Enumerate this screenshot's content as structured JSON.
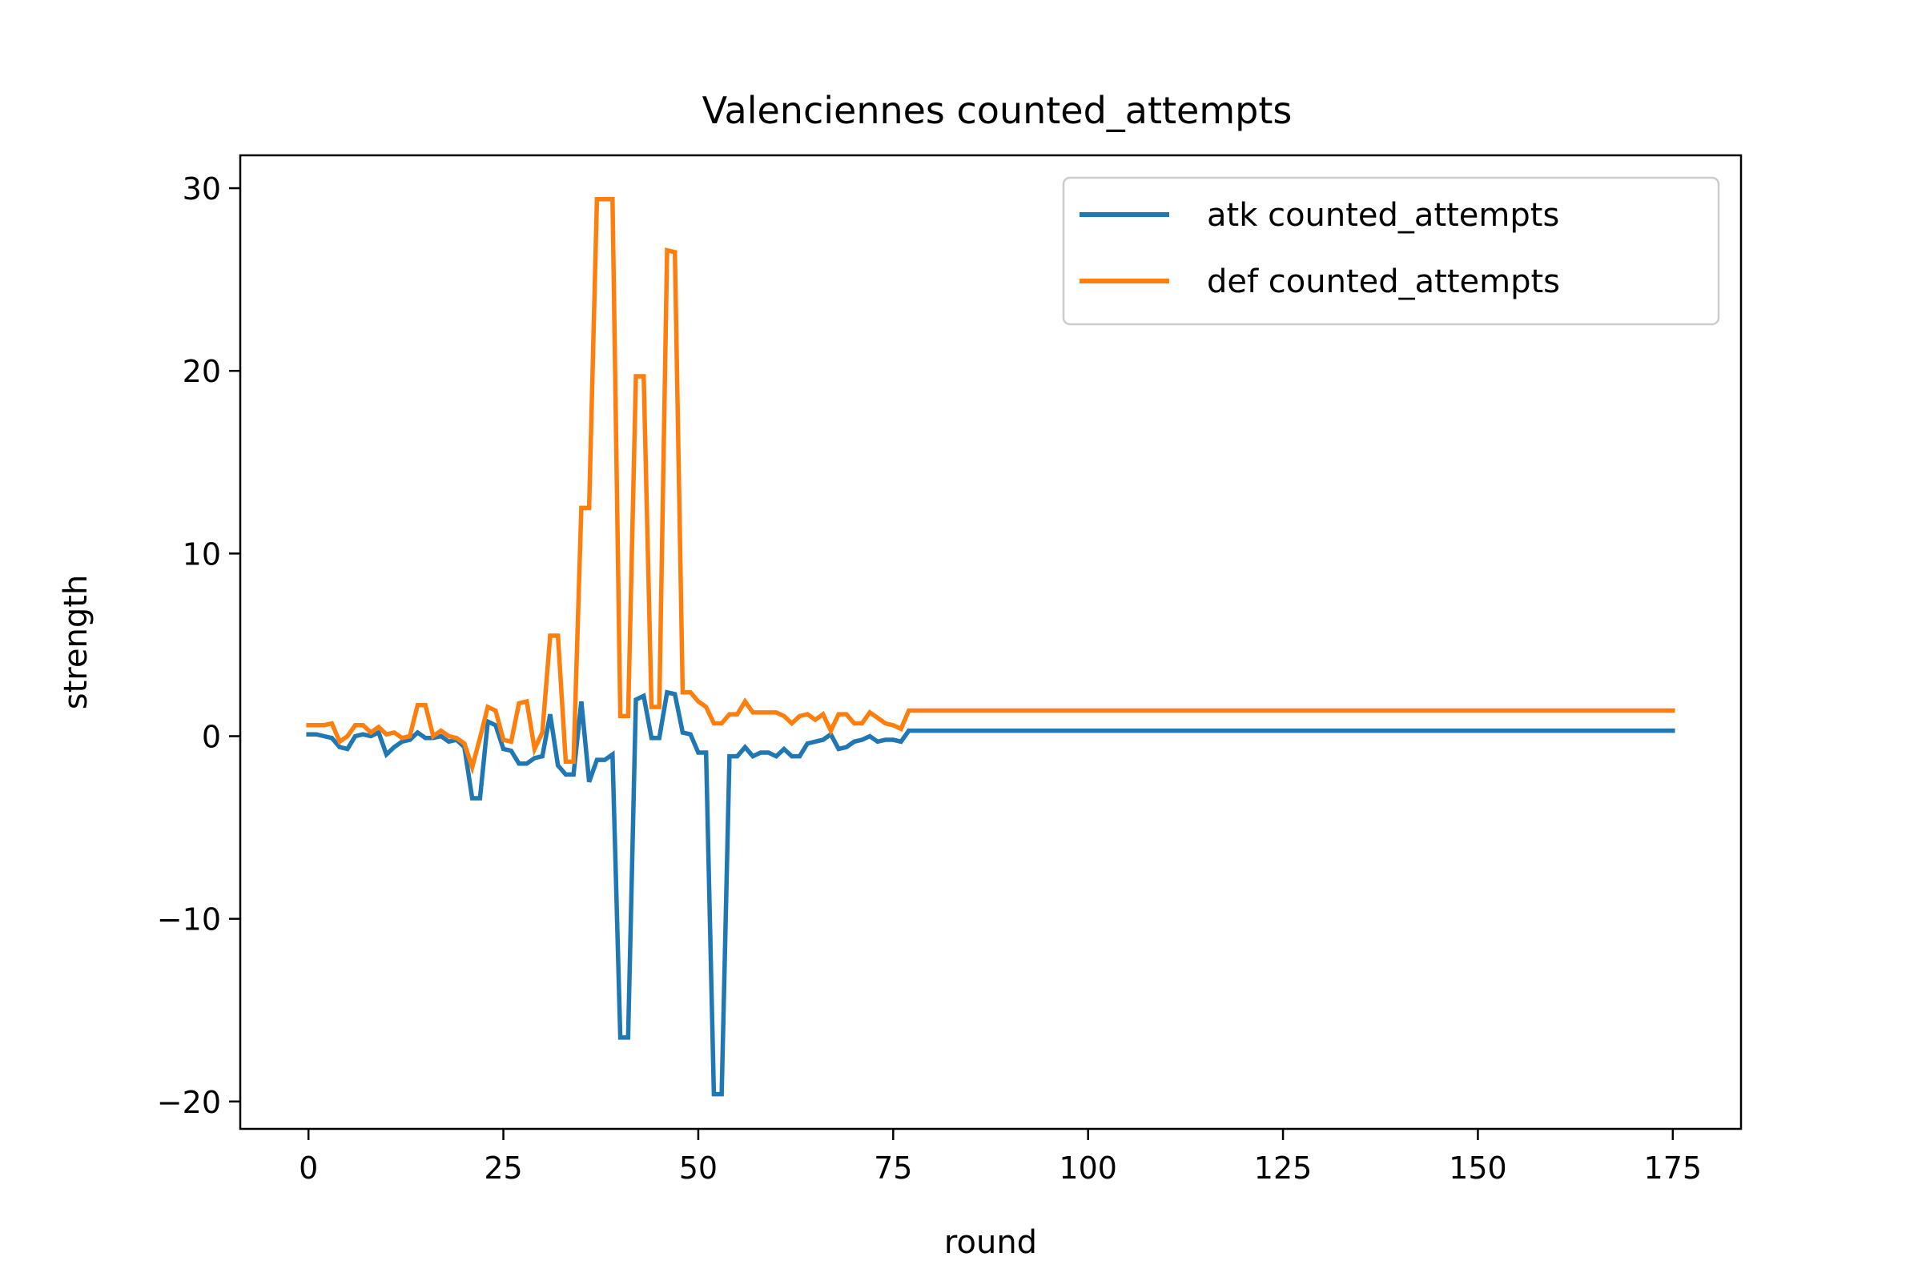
{
  "chart_data": {
    "type": "line",
    "title": "Valenciennes counted_attempts",
    "xlabel": "round",
    "ylabel": "strength",
    "xlim": [
      -8.75,
      183.75
    ],
    "ylim": [
      -21.5,
      31.8
    ],
    "xticks": [
      0,
      25,
      50,
      75,
      100,
      125,
      150,
      175
    ],
    "yticks": [
      -20,
      -10,
      0,
      10,
      20,
      30
    ],
    "ytick_labels": [
      "−20",
      "−10",
      "0",
      "10",
      "20",
      "30"
    ],
    "grid": false,
    "legend_position": "top-right",
    "series": [
      {
        "name": "atk counted_attempts",
        "color": "#1f77b4",
        "points": [
          [
            0,
            0.1
          ],
          [
            1,
            0.1
          ],
          [
            2,
            0.0
          ],
          [
            3,
            -0.1
          ],
          [
            4,
            -0.6
          ],
          [
            5,
            -0.7
          ],
          [
            6,
            0.0
          ],
          [
            7,
            0.1
          ],
          [
            8,
            0.0
          ],
          [
            9,
            0.2
          ],
          [
            10,
            -1.0
          ],
          [
            11,
            -0.6
          ],
          [
            12,
            -0.3
          ],
          [
            13,
            -0.2
          ],
          [
            14,
            0.2
          ],
          [
            15,
            -0.1
          ],
          [
            16,
            -0.1
          ],
          [
            17,
            0.0
          ],
          [
            18,
            -0.3
          ],
          [
            19,
            -0.2
          ],
          [
            20,
            -0.6
          ],
          [
            21,
            -3.4
          ],
          [
            22,
            -3.4
          ],
          [
            23,
            0.8
          ],
          [
            24,
            0.6
          ],
          [
            25,
            -0.7
          ],
          [
            26,
            -0.8
          ],
          [
            27,
            -1.5
          ],
          [
            28,
            -1.5
          ],
          [
            29,
            -1.2
          ],
          [
            30,
            -1.1
          ],
          [
            31,
            1.2
          ],
          [
            32,
            -1.6
          ],
          [
            33,
            -2.1
          ],
          [
            34,
            -2.1
          ],
          [
            35,
            1.9
          ],
          [
            36,
            -2.5
          ],
          [
            37,
            -1.3
          ],
          [
            38,
            -1.3
          ],
          [
            39,
            -1.0
          ],
          [
            40,
            -16.5
          ],
          [
            41,
            -16.5
          ],
          [
            42,
            2.0
          ],
          [
            43,
            2.2
          ],
          [
            44,
            -0.1
          ],
          [
            45,
            -0.1
          ],
          [
            46,
            2.4
          ],
          [
            47,
            2.3
          ],
          [
            48,
            0.2
          ],
          [
            49,
            0.1
          ],
          [
            50,
            -0.9
          ],
          [
            51,
            -0.9
          ],
          [
            52,
            -19.6
          ],
          [
            53,
            -19.6
          ],
          [
            54,
            -1.1
          ],
          [
            55,
            -1.1
          ],
          [
            56,
            -0.6
          ],
          [
            57,
            -1.1
          ],
          [
            58,
            -0.9
          ],
          [
            59,
            -0.9
          ],
          [
            60,
            -1.1
          ],
          [
            61,
            -0.7
          ],
          [
            62,
            -1.1
          ],
          [
            63,
            -1.1
          ],
          [
            64,
            -0.4
          ],
          [
            65,
            -0.3
          ],
          [
            66,
            -0.2
          ],
          [
            67,
            0.1
          ],
          [
            68,
            -0.7
          ],
          [
            69,
            -0.6
          ],
          [
            70,
            -0.3
          ],
          [
            71,
            -0.2
          ],
          [
            72,
            0.0
          ],
          [
            73,
            -0.3
          ],
          [
            74,
            -0.2
          ],
          [
            75,
            -0.2
          ],
          [
            76,
            -0.3
          ],
          [
            77,
            0.3
          ],
          [
            175,
            0.3
          ]
        ]
      },
      {
        "name": "def counted_attempts",
        "color": "#ff7f0e",
        "points": [
          [
            0,
            0.6
          ],
          [
            1,
            0.6
          ],
          [
            2,
            0.6
          ],
          [
            3,
            0.7
          ],
          [
            4,
            -0.3
          ],
          [
            5,
            0.0
          ],
          [
            6,
            0.6
          ],
          [
            7,
            0.6
          ],
          [
            8,
            0.2
          ],
          [
            9,
            0.5
          ],
          [
            10,
            0.1
          ],
          [
            11,
            0.2
          ],
          [
            12,
            -0.1
          ],
          [
            13,
            0.0
          ],
          [
            14,
            1.7
          ],
          [
            15,
            1.7
          ],
          [
            16,
            0.0
          ],
          [
            17,
            0.3
          ],
          [
            18,
            0.0
          ],
          [
            19,
            -0.1
          ],
          [
            20,
            -0.4
          ],
          [
            21,
            -1.7
          ],
          [
            22,
            -0.1
          ],
          [
            23,
            1.6
          ],
          [
            24,
            1.4
          ],
          [
            25,
            -0.2
          ],
          [
            26,
            -0.3
          ],
          [
            27,
            1.8
          ],
          [
            28,
            1.9
          ],
          [
            29,
            -0.7
          ],
          [
            30,
            0.2
          ],
          [
            31,
            5.5
          ],
          [
            32,
            5.5
          ],
          [
            33,
            -1.4
          ],
          [
            34,
            -1.4
          ],
          [
            35,
            12.5
          ],
          [
            36,
            12.5
          ],
          [
            37,
            29.4
          ],
          [
            38,
            29.4
          ],
          [
            39,
            29.4
          ],
          [
            40,
            1.1
          ],
          [
            41,
            1.1
          ],
          [
            42,
            19.7
          ],
          [
            43,
            19.7
          ],
          [
            44,
            1.6
          ],
          [
            45,
            1.6
          ],
          [
            46,
            26.6
          ],
          [
            47,
            26.5
          ],
          [
            48,
            2.4
          ],
          [
            49,
            2.4
          ],
          [
            50,
            1.9
          ],
          [
            51,
            1.6
          ],
          [
            52,
            0.7
          ],
          [
            53,
            0.7
          ],
          [
            54,
            1.2
          ],
          [
            55,
            1.2
          ],
          [
            56,
            1.9
          ],
          [
            57,
            1.3
          ],
          [
            58,
            1.3
          ],
          [
            59,
            1.3
          ],
          [
            60,
            1.3
          ],
          [
            61,
            1.1
          ],
          [
            62,
            0.7
          ],
          [
            63,
            1.1
          ],
          [
            64,
            1.2
          ],
          [
            65,
            0.9
          ],
          [
            66,
            1.2
          ],
          [
            67,
            0.3
          ],
          [
            68,
            1.2
          ],
          [
            69,
            1.2
          ],
          [
            70,
            0.7
          ],
          [
            71,
            0.7
          ],
          [
            72,
            1.3
          ],
          [
            73,
            1.0
          ],
          [
            74,
            0.7
          ],
          [
            75,
            0.6
          ],
          [
            76,
            0.4
          ],
          [
            77,
            1.4
          ],
          [
            175,
            1.4
          ]
        ]
      }
    ]
  }
}
